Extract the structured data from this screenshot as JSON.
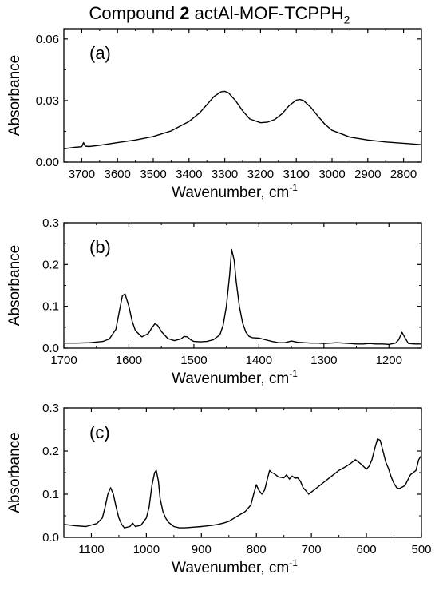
{
  "title": {
    "prefix": "Compound ",
    "number": "2",
    "middle": " actAl-MOF-TCPPH",
    "subscript": "2"
  },
  "chart_data": [
    {
      "type": "line",
      "panel_label": "(a)",
      "xlabel": "Wavenumber, cm",
      "xlabel_sup": "-1",
      "ylabel": "Absorbance",
      "xlim": [
        3750,
        2750
      ],
      "ylim": [
        0,
        0.065
      ],
      "xticks": [
        3700,
        3600,
        3500,
        3400,
        3300,
        3200,
        3100,
        3000,
        2900,
        2800
      ],
      "yticks": [
        0.0,
        0.03,
        0.06
      ],
      "ytick_labels": [
        "0.00",
        "0.03",
        "0.06"
      ],
      "grid": false,
      "series": [
        {
          "x": [
            3750,
            3720,
            3700,
            3695,
            3690,
            3680,
            3650,
            3600,
            3550,
            3500,
            3450,
            3400,
            3370,
            3350,
            3330,
            3310,
            3300,
            3290,
            3270,
            3250,
            3230,
            3200,
            3180,
            3160,
            3140,
            3120,
            3100,
            3090,
            3080,
            3060,
            3040,
            3020,
            3000,
            2950,
            2900,
            2850,
            2800,
            2750
          ],
          "y": [
            0.0065,
            0.0072,
            0.0075,
            0.0095,
            0.0078,
            0.0076,
            0.0082,
            0.0095,
            0.0108,
            0.0125,
            0.0152,
            0.0198,
            0.024,
            0.028,
            0.032,
            0.0343,
            0.0345,
            0.0338,
            0.03,
            0.025,
            0.021,
            0.0192,
            0.0195,
            0.0208,
            0.0235,
            0.0275,
            0.0302,
            0.0305,
            0.03,
            0.0268,
            0.0225,
            0.0185,
            0.0155,
            0.0122,
            0.0108,
            0.0098,
            0.0092,
            0.0085
          ]
        }
      ]
    },
    {
      "type": "line",
      "panel_label": "(b)",
      "xlabel": "Wavenumber, cm",
      "xlabel_sup": "-1",
      "ylabel": "Absorbance",
      "xlim": [
        1700,
        1150
      ],
      "ylim": [
        0,
        0.3
      ],
      "xticks": [
        1700,
        1600,
        1500,
        1400,
        1300,
        1200
      ],
      "yticks": [
        0.0,
        0.1,
        0.2,
        0.3
      ],
      "ytick_labels": [
        "0.0",
        "0.1",
        "0.2",
        "0.3"
      ],
      "grid": false,
      "series": [
        {
          "x": [
            1700,
            1680,
            1660,
            1640,
            1630,
            1620,
            1615,
            1610,
            1606,
            1600,
            1595,
            1590,
            1580,
            1570,
            1565,
            1560,
            1556,
            1550,
            1540,
            1530,
            1520,
            1515,
            1510,
            1505,
            1500,
            1490,
            1480,
            1470,
            1460,
            1455,
            1450,
            1445,
            1442,
            1438,
            1435,
            1430,
            1425,
            1420,
            1415,
            1410,
            1400,
            1390,
            1380,
            1370,
            1360,
            1350,
            1340,
            1330,
            1320,
            1310,
            1300,
            1290,
            1280,
            1270,
            1260,
            1250,
            1240,
            1230,
            1220,
            1210,
            1200,
            1190,
            1185,
            1180,
            1175,
            1170,
            1160,
            1150
          ],
          "y": [
            0.012,
            0.012,
            0.013,
            0.016,
            0.022,
            0.045,
            0.085,
            0.125,
            0.13,
            0.1,
            0.065,
            0.042,
            0.027,
            0.035,
            0.048,
            0.058,
            0.055,
            0.04,
            0.023,
            0.018,
            0.022,
            0.028,
            0.027,
            0.02,
            0.016,
            0.015,
            0.016,
            0.02,
            0.032,
            0.055,
            0.1,
            0.175,
            0.236,
            0.21,
            0.16,
            0.1,
            0.06,
            0.038,
            0.028,
            0.025,
            0.024,
            0.02,
            0.016,
            0.013,
            0.013,
            0.017,
            0.014,
            0.013,
            0.012,
            0.012,
            0.011,
            0.012,
            0.013,
            0.012,
            0.011,
            0.01,
            0.01,
            0.011,
            0.01,
            0.01,
            0.009,
            0.012,
            0.02,
            0.038,
            0.024,
            0.011,
            0.01,
            0.01
          ]
        }
      ]
    },
    {
      "type": "line",
      "panel_label": "(c)",
      "xlabel": "Wavenumber, cm",
      "xlabel_sup": "-1",
      "ylabel": "Absorbance",
      "xlim": [
        1150,
        500
      ],
      "ylim": [
        0,
        0.3
      ],
      "xticks": [
        1100,
        1000,
        900,
        800,
        700,
        600,
        500
      ],
      "yticks": [
        0.0,
        0.1,
        0.2,
        0.3
      ],
      "ytick_labels": [
        "0.0",
        "0.1",
        "0.2",
        "0.3"
      ],
      "grid": false,
      "series": [
        {
          "x": [
            1150,
            1130,
            1110,
            1090,
            1080,
            1075,
            1070,
            1065,
            1060,
            1055,
            1050,
            1045,
            1040,
            1030,
            1025,
            1020,
            1010,
            1000,
            995,
            990,
            985,
            982,
            978,
            975,
            970,
            965,
            960,
            950,
            940,
            930,
            920,
            900,
            880,
            870,
            860,
            850,
            840,
            820,
            810,
            805,
            800,
            796,
            790,
            785,
            780,
            776,
            772,
            768,
            760,
            750,
            745,
            740,
            735,
            730,
            725,
            720,
            715,
            710,
            705,
            700,
            690,
            680,
            670,
            660,
            650,
            640,
            630,
            625,
            620,
            615,
            610,
            600,
            595,
            590,
            585,
            580,
            575,
            570,
            565,
            560,
            555,
            550,
            545,
            540,
            530,
            520,
            510,
            505,
            500
          ],
          "y": [
            0.03,
            0.027,
            0.025,
            0.032,
            0.045,
            0.07,
            0.1,
            0.115,
            0.1,
            0.07,
            0.045,
            0.03,
            0.022,
            0.025,
            0.033,
            0.025,
            0.028,
            0.045,
            0.07,
            0.12,
            0.15,
            0.155,
            0.13,
            0.09,
            0.06,
            0.045,
            0.035,
            0.025,
            0.022,
            0.022,
            0.023,
            0.025,
            0.028,
            0.03,
            0.033,
            0.037,
            0.045,
            0.06,
            0.075,
            0.1,
            0.122,
            0.11,
            0.1,
            0.11,
            0.135,
            0.155,
            0.15,
            0.148,
            0.14,
            0.138,
            0.145,
            0.135,
            0.142,
            0.137,
            0.138,
            0.13,
            0.115,
            0.108,
            0.1,
            0.105,
            0.115,
            0.125,
            0.135,
            0.145,
            0.155,
            0.162,
            0.17,
            0.175,
            0.18,
            0.175,
            0.17,
            0.158,
            0.165,
            0.18,
            0.205,
            0.228,
            0.225,
            0.2,
            0.175,
            0.16,
            0.14,
            0.125,
            0.115,
            0.113,
            0.12,
            0.145,
            0.155,
            0.18,
            0.19
          ]
        }
      ]
    }
  ]
}
